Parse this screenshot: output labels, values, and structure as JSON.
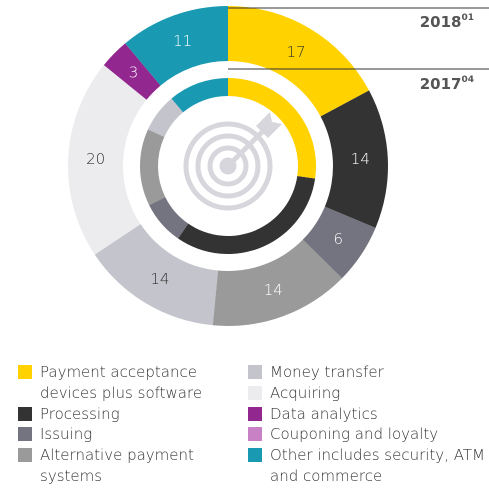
{
  "chart_data": {
    "type": "donut",
    "categories": [
      "Payment acceptance devices plus software",
      "Processing",
      "Issuing",
      "Alternative payment systems",
      "Money transfer",
      "Acquiring",
      "Data analytics",
      "Couponing and loyalty",
      "Other includes security, ATM and commerce"
    ],
    "colors": [
      "#ffd200",
      "#333333",
      "#747480",
      "#9a9a9a",
      "#c4c4cd",
      "#ececef",
      "#91278f",
      "#c981c6",
      "#1a9ab2"
    ],
    "series": [
      {
        "name": "2018",
        "footnote": "01",
        "values": [
          17,
          14,
          6,
          14,
          14,
          20,
          3,
          null,
          11
        ]
      },
      {
        "name": "2017",
        "footnote": "04",
        "values": [
          27,
          32,
          8,
          14,
          7,
          null,
          null,
          null,
          11
        ]
      }
    ]
  }
}
